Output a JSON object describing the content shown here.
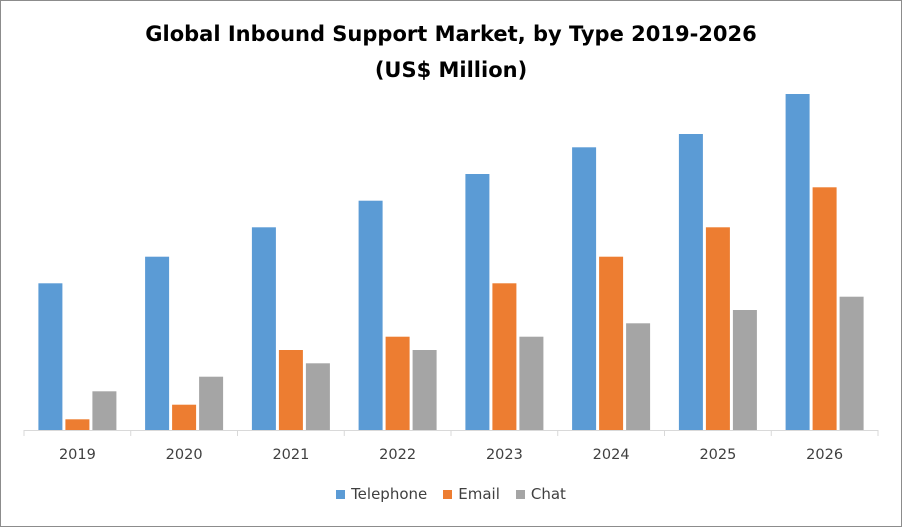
{
  "chart_data": {
    "type": "bar",
    "title": "Global Inbound Support Market, by Type 2019-2026",
    "subtitle": "(US$ Million)",
    "xlabel": "",
    "ylabel": "",
    "categories": [
      "2019",
      "2020",
      "2021",
      "2022",
      "2023",
      "2024",
      "2025",
      "2026"
    ],
    "series": [
      {
        "name": "Telephone",
        "color": "#5b9bd5",
        "values": [
          110,
          130,
          152,
          172,
          192,
          212,
          222,
          252
        ]
      },
      {
        "name": "Email",
        "color": "#ed7d31",
        "values": [
          8,
          19,
          60,
          70,
          110,
          130,
          152,
          182
        ]
      },
      {
        "name": "Chat",
        "color": "#a5a5a5",
        "values": [
          29,
          40,
          50,
          60,
          70,
          80,
          90,
          100
        ]
      }
    ],
    "ylim": [
      0,
      300
    ],
    "grid": false,
    "legend": "bottom"
  }
}
